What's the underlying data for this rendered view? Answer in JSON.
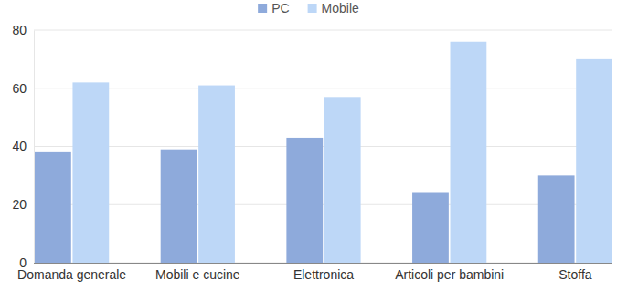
{
  "chart_data": {
    "type": "bar",
    "categories": [
      "Domanda generale",
      "Mobili e cucine",
      "Elettronica",
      "Articoli per bambini",
      "Stoffa"
    ],
    "series": [
      {
        "name": "PC",
        "color": "#8eaadb",
        "values": [
          38,
          39,
          43,
          24,
          30
        ]
      },
      {
        "name": "Mobile",
        "color": "#bdd7f7",
        "values": [
          62,
          61,
          57,
          76,
          70
        ]
      }
    ],
    "ylim": [
      0,
      80
    ],
    "yticks": [
      0,
      20,
      40,
      60,
      80
    ],
    "grid": true,
    "legend": "top"
  }
}
